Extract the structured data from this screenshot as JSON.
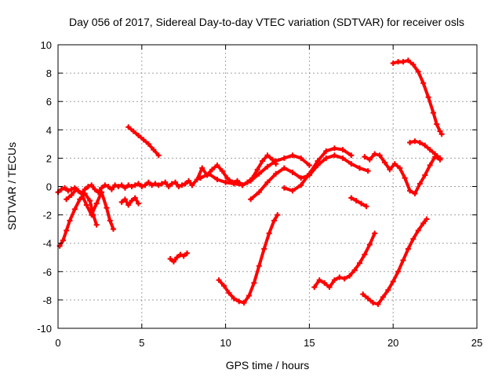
{
  "chart_data": {
    "type": "scatter",
    "title": "Day 056 of 2017, Sidereal Day-to-day VTEC variation (SDTVAR) for receiver osls",
    "xlabel": "GPS time / hours",
    "ylabel": "SDTVAR / TECUs",
    "xlim": [
      0,
      25
    ],
    "ylim": [
      -10,
      10
    ],
    "xticks": [
      0,
      5,
      10,
      15,
      20,
      25
    ],
    "yticks": [
      -10,
      -8,
      -6,
      -4,
      -2,
      0,
      2,
      4,
      6,
      8,
      10
    ],
    "grid": true,
    "marker_color": "#ff0000",
    "series": [
      {
        "x": [
          0.0,
          0.2,
          0.4,
          0.6,
          0.8,
          1.0,
          1.2,
          1.4,
          1.6,
          1.8,
          2.0,
          2.2,
          2.4,
          2.6,
          2.8,
          3.0,
          3.2,
          3.4,
          3.6,
          3.8,
          4.0,
          4.2,
          4.4,
          4.6,
          4.8,
          5.0,
          5.2,
          5.4,
          5.6,
          5.8,
          6.0,
          6.2,
          6.4,
          6.6,
          6.8,
          7.0,
          7.2,
          7.4,
          7.6,
          7.8,
          8.0
        ],
        "y": [
          -0.4,
          -0.2,
          -0.1,
          -0.3,
          -0.2,
          -0.1,
          -0.3,
          -0.5,
          -0.2,
          0.0,
          0.1,
          -0.2,
          -0.4,
          -0.1,
          0.1,
          0.0,
          -0.2,
          0.1,
          0.0,
          0.1,
          -0.1,
          0.1,
          0.0,
          0.1,
          0.2,
          0.0,
          0.1,
          0.3,
          0.1,
          0.2,
          0.1,
          0.2,
          0.3,
          0.0,
          0.2,
          0.3,
          0.0,
          0.1,
          0.2,
          0.4,
          0.1
        ]
      },
      {
        "x": [
          0.1,
          0.3,
          0.5,
          0.7,
          1.0,
          1.3,
          1.6,
          1.9,
          2.1,
          2.3
        ],
        "y": [
          -4.2,
          -3.8,
          -3.1,
          -2.4,
          -1.6,
          -0.9,
          -0.5,
          -1.0,
          -2.0,
          -2.7
        ]
      },
      {
        "x": [
          0.5,
          0.8,
          1.1,
          1.4,
          1.7,
          2.0,
          2.3,
          2.6,
          2.9,
          3.1,
          3.3
        ],
        "y": [
          -0.9,
          -0.6,
          -0.2,
          -0.5,
          -1.3,
          -2.0,
          -1.2,
          -0.4,
          -1.5,
          -2.4,
          -3.0
        ]
      },
      {
        "x": [
          3.8,
          4.0,
          4.2,
          4.4,
          4.6,
          4.8
        ],
        "y": [
          -1.1,
          -0.9,
          -1.3,
          -1.0,
          -0.8,
          -1.2
        ]
      },
      {
        "x": [
          4.2,
          4.5,
          4.8,
          5.1,
          5.4,
          5.7,
          6.0
        ],
        "y": [
          4.2,
          3.9,
          3.6,
          3.3,
          3.0,
          2.6,
          2.2
        ]
      },
      {
        "x": [
          6.7,
          6.9,
          7.1,
          7.3,
          7.5,
          7.7
        ],
        "y": [
          -5.1,
          -5.3,
          -5.0,
          -4.8,
          -4.9,
          -4.7
        ]
      },
      {
        "x": [
          8.0,
          8.3,
          8.6,
          8.9,
          9.2,
          9.5,
          9.8,
          10.1,
          10.4,
          10.7,
          11.0,
          11.3,
          11.6,
          11.9,
          12.2,
          12.5,
          12.8,
          13.0
        ],
        "y": [
          0.1,
          0.5,
          1.3,
          0.8,
          1.2,
          1.5,
          1.1,
          0.6,
          0.3,
          0.4,
          0.1,
          0.3,
          0.6,
          1.2,
          1.8,
          2.2,
          1.9,
          1.6
        ]
      },
      {
        "x": [
          8.5,
          9.0,
          9.5,
          10.0,
          10.5,
          11.0,
          11.5,
          12.0,
          12.5,
          13.0,
          13.5,
          14.0,
          14.5,
          15.0
        ],
        "y": [
          0.6,
          0.9,
          0.5,
          0.3,
          0.2,
          0.1,
          0.4,
          0.9,
          1.4,
          1.8,
          2.0,
          2.2,
          2.0,
          1.5
        ]
      },
      {
        "x": [
          11.5,
          12.0,
          12.5,
          13.0,
          13.5,
          14.0,
          14.5,
          15.0,
          15.5,
          16.0,
          16.5,
          17.0,
          17.5,
          18.0,
          18.5
        ],
        "y": [
          -0.9,
          -0.4,
          0.3,
          0.9,
          1.3,
          1.0,
          0.6,
          0.8,
          1.5,
          2.0,
          2.2,
          2.0,
          1.6,
          1.3,
          1.1
        ]
      },
      {
        "x": [
          13.5,
          14.0,
          14.5,
          15.0,
          15.5,
          16.0,
          16.5,
          17.0,
          17.5
        ],
        "y": [
          -0.1,
          -0.3,
          0.1,
          0.9,
          1.8,
          2.5,
          2.7,
          2.6,
          2.2
        ]
      },
      {
        "x": [
          9.6,
          9.9,
          10.2,
          10.5,
          10.8,
          11.1,
          11.4,
          11.7,
          12.0,
          12.3,
          12.6,
          12.9,
          13.1
        ],
        "y": [
          -6.6,
          -7.0,
          -7.5,
          -7.9,
          -8.1,
          -8.2,
          -7.7,
          -6.8,
          -5.6,
          -4.4,
          -3.3,
          -2.4,
          -2.0
        ]
      },
      {
        "x": [
          15.3,
          15.6,
          15.9,
          16.2,
          16.5,
          16.8,
          17.1,
          17.4,
          17.7,
          18.0,
          18.3,
          18.6,
          18.9
        ],
        "y": [
          -7.1,
          -6.6,
          -6.8,
          -7.1,
          -6.6,
          -6.4,
          -6.5,
          -6.3,
          -5.9,
          -5.4,
          -4.8,
          -4.1,
          -3.3
        ]
      },
      {
        "x": [
          17.5,
          17.8,
          18.1,
          18.4
        ],
        "y": [
          -0.8,
          -1.0,
          -1.2,
          -1.4
        ]
      },
      {
        "x": [
          18.2,
          18.5,
          18.8,
          19.1,
          19.4,
          19.7,
          20.0,
          20.3,
          20.6,
          20.9,
          21.2,
          21.5,
          21.8,
          22.0
        ],
        "y": [
          -7.6,
          -7.9,
          -8.2,
          -8.3,
          -7.8,
          -7.3,
          -6.7,
          -6.0,
          -5.2,
          -4.4,
          -3.7,
          -3.1,
          -2.6,
          -2.3
        ]
      },
      {
        "x": [
          18.3,
          18.6,
          18.9,
          19.2,
          19.5,
          19.8,
          20.1,
          20.4,
          20.7,
          21.0,
          21.3,
          21.6,
          21.9,
          22.2,
          22.5,
          22.8
        ],
        "y": [
          2.1,
          1.9,
          2.3,
          2.2,
          1.7,
          1.2,
          1.6,
          1.3,
          0.6,
          -0.3,
          -0.5,
          0.2,
          0.8,
          1.5,
          2.1,
          1.9
        ]
      },
      {
        "x": [
          20.0,
          20.3,
          20.6,
          20.9,
          21.2,
          21.5,
          21.8,
          22.1,
          22.4,
          22.6,
          22.8,
          22.9
        ],
        "y": [
          8.7,
          8.8,
          8.8,
          8.9,
          8.6,
          8.1,
          7.3,
          6.3,
          5.2,
          4.4,
          3.9,
          3.7
        ]
      },
      {
        "x": [
          21.0,
          21.3,
          21.6,
          21.9,
          22.2,
          22.5,
          22.8
        ],
        "y": [
          3.1,
          3.2,
          3.1,
          2.9,
          2.6,
          2.3,
          2.0
        ]
      }
    ]
  }
}
